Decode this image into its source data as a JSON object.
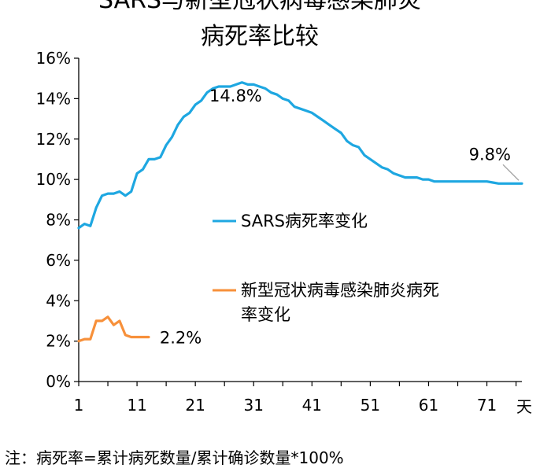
{
  "chart_data": {
    "type": "line",
    "title": [
      "SARS与新型冠状病毒感染肺炎",
      "病死率比较"
    ],
    "xlabel": "天",
    "ylabel": "",
    "xlim": [
      1,
      77
    ],
    "ylim": [
      0,
      16
    ],
    "x_ticks": [
      1,
      11,
      21,
      31,
      41,
      51,
      61,
      71
    ],
    "y_ticks": [
      {
        "v": 0,
        "label": "0%"
      },
      {
        "v": 2,
        "label": "2%"
      },
      {
        "v": 4,
        "label": "4%"
      },
      {
        "v": 6,
        "label": "6%"
      },
      {
        "v": 8,
        "label": "8%"
      },
      {
        "v": 10,
        "label": "10%"
      },
      {
        "v": 12,
        "label": "12%"
      },
      {
        "v": 14,
        "label": "14%"
      },
      {
        "v": 16,
        "label": "16%"
      }
    ],
    "grid": false,
    "legend": "inside-right",
    "series": [
      {
        "name": "SARS病死率变化",
        "color": "#1EA7E1",
        "x": [
          1,
          2,
          3,
          4,
          5,
          6,
          7,
          8,
          9,
          10,
          11,
          12,
          13,
          14,
          15,
          16,
          17,
          18,
          19,
          20,
          21,
          22,
          23,
          24,
          25,
          26,
          27,
          28,
          29,
          30,
          31,
          32,
          33,
          34,
          35,
          36,
          37,
          38,
          39,
          40,
          41,
          42,
          43,
          44,
          45,
          46,
          47,
          48,
          49,
          50,
          51,
          52,
          53,
          54,
          55,
          56,
          57,
          58,
          59,
          60,
          61,
          62,
          63,
          64,
          65,
          66,
          67,
          68,
          69,
          70,
          71,
          72,
          73,
          74,
          75,
          76,
          77
        ],
        "values": [
          7.6,
          7.8,
          7.7,
          8.6,
          9.2,
          9.3,
          9.3,
          9.4,
          9.2,
          9.4,
          10.3,
          10.5,
          11.0,
          11.0,
          11.1,
          11.7,
          12.1,
          12.7,
          13.1,
          13.3,
          13.7,
          13.9,
          14.3,
          14.5,
          14.6,
          14.6,
          14.6,
          14.7,
          14.8,
          14.7,
          14.7,
          14.6,
          14.5,
          14.3,
          14.2,
          14.0,
          13.9,
          13.6,
          13.5,
          13.4,
          13.3,
          13.1,
          12.9,
          12.7,
          12.5,
          12.3,
          11.9,
          11.7,
          11.6,
          11.2,
          11.0,
          10.8,
          10.6,
          10.5,
          10.3,
          10.2,
          10.1,
          10.1,
          10.1,
          10.0,
          10.0,
          9.9,
          9.9,
          9.9,
          9.9,
          9.9,
          9.9,
          9.9,
          9.9,
          9.9,
          9.9,
          9.85,
          9.8,
          9.8,
          9.8,
          9.8,
          9.8
        ]
      },
      {
        "name": "新型冠状病毒感染肺炎病死率变化",
        "color": "#F7903A",
        "x": [
          1,
          2,
          3,
          4,
          5,
          6,
          7,
          8,
          9,
          10,
          11,
          12,
          13
        ],
        "values": [
          2.0,
          2.1,
          2.1,
          3.0,
          3.0,
          3.2,
          2.8,
          3.0,
          2.3,
          2.2,
          2.2,
          2.2,
          2.2
        ]
      }
    ],
    "annotations": [
      {
        "text": "14.8%",
        "x": 29,
        "y": 14.8
      },
      {
        "text": "9.8%",
        "x": 77,
        "y": 9.8
      },
      {
        "text": "2.2%",
        "x": 13,
        "y": 2.2
      }
    ]
  },
  "legend": {
    "sars_label": "SARS病死率变化",
    "ncov_label_line1": "新型冠状病毒感染肺炎病死",
    "ncov_label_line2": "率变化"
  },
  "footnote": "注：病死率=累计病死数量/累计确诊数量*100%"
}
